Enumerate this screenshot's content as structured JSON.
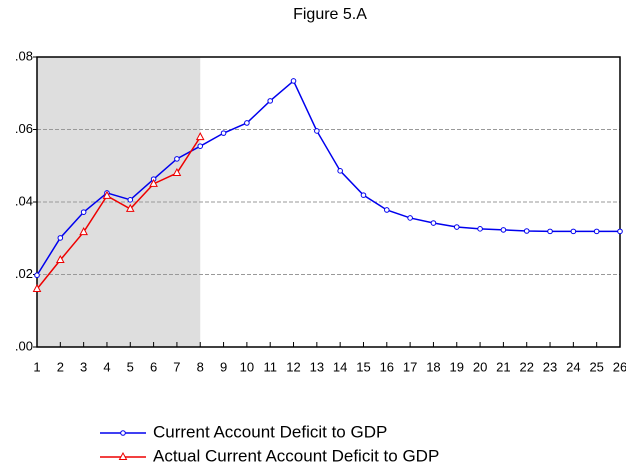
{
  "chart_data": {
    "type": "line",
    "title": "Figure 5.A",
    "x": [
      1,
      2,
      3,
      4,
      5,
      6,
      7,
      8,
      9,
      10,
      11,
      12,
      13,
      14,
      15,
      16,
      17,
      18,
      19,
      20,
      21,
      22,
      23,
      24,
      25,
      26
    ],
    "xlim": [
      1,
      26
    ],
    "xticks": [
      1,
      2,
      3,
      4,
      5,
      6,
      7,
      8,
      9,
      10,
      11,
      12,
      13,
      14,
      15,
      16,
      17,
      18,
      19,
      20,
      21,
      22,
      23,
      24,
      25,
      26
    ],
    "ylim": [
      0,
      0.08
    ],
    "yticks": [
      {
        "value": 0,
        "label": ".00"
      },
      {
        "value": 0.02,
        "label": ".02"
      },
      {
        "value": 0.04,
        "label": ".04"
      },
      {
        "value": 0.06,
        "label": ".06"
      },
      {
        "value": 0.08,
        "label": ".08"
      }
    ],
    "grid": true,
    "shaded_range": [
      1,
      8
    ],
    "shade_color": "#dedede",
    "series": [
      {
        "name": "Current Account Deficit to GDP",
        "color": "#0000ee",
        "marker": "circle",
        "values": [
          0.0198,
          0.0301,
          0.0372,
          0.0425,
          0.0406,
          0.0463,
          0.0519,
          0.0554,
          0.059,
          0.0618,
          0.0679,
          0.0734,
          0.0596,
          0.0486,
          0.0419,
          0.0378,
          0.0356,
          0.0342,
          0.0331,
          0.0326,
          0.0323,
          0.032,
          0.0319,
          0.0319,
          0.0319,
          0.0319
        ]
      },
      {
        "name": "Actual Current Account Deficit to GDP",
        "color": "#ee0000",
        "marker": "triangle",
        "values": [
          0.016,
          0.024,
          0.0317,
          0.0417,
          0.0381,
          0.045,
          0.048,
          0.0579,
          null,
          null,
          null,
          null,
          null,
          null,
          null,
          null,
          null,
          null,
          null,
          null,
          null,
          null,
          null,
          null,
          null,
          null
        ]
      }
    ]
  }
}
